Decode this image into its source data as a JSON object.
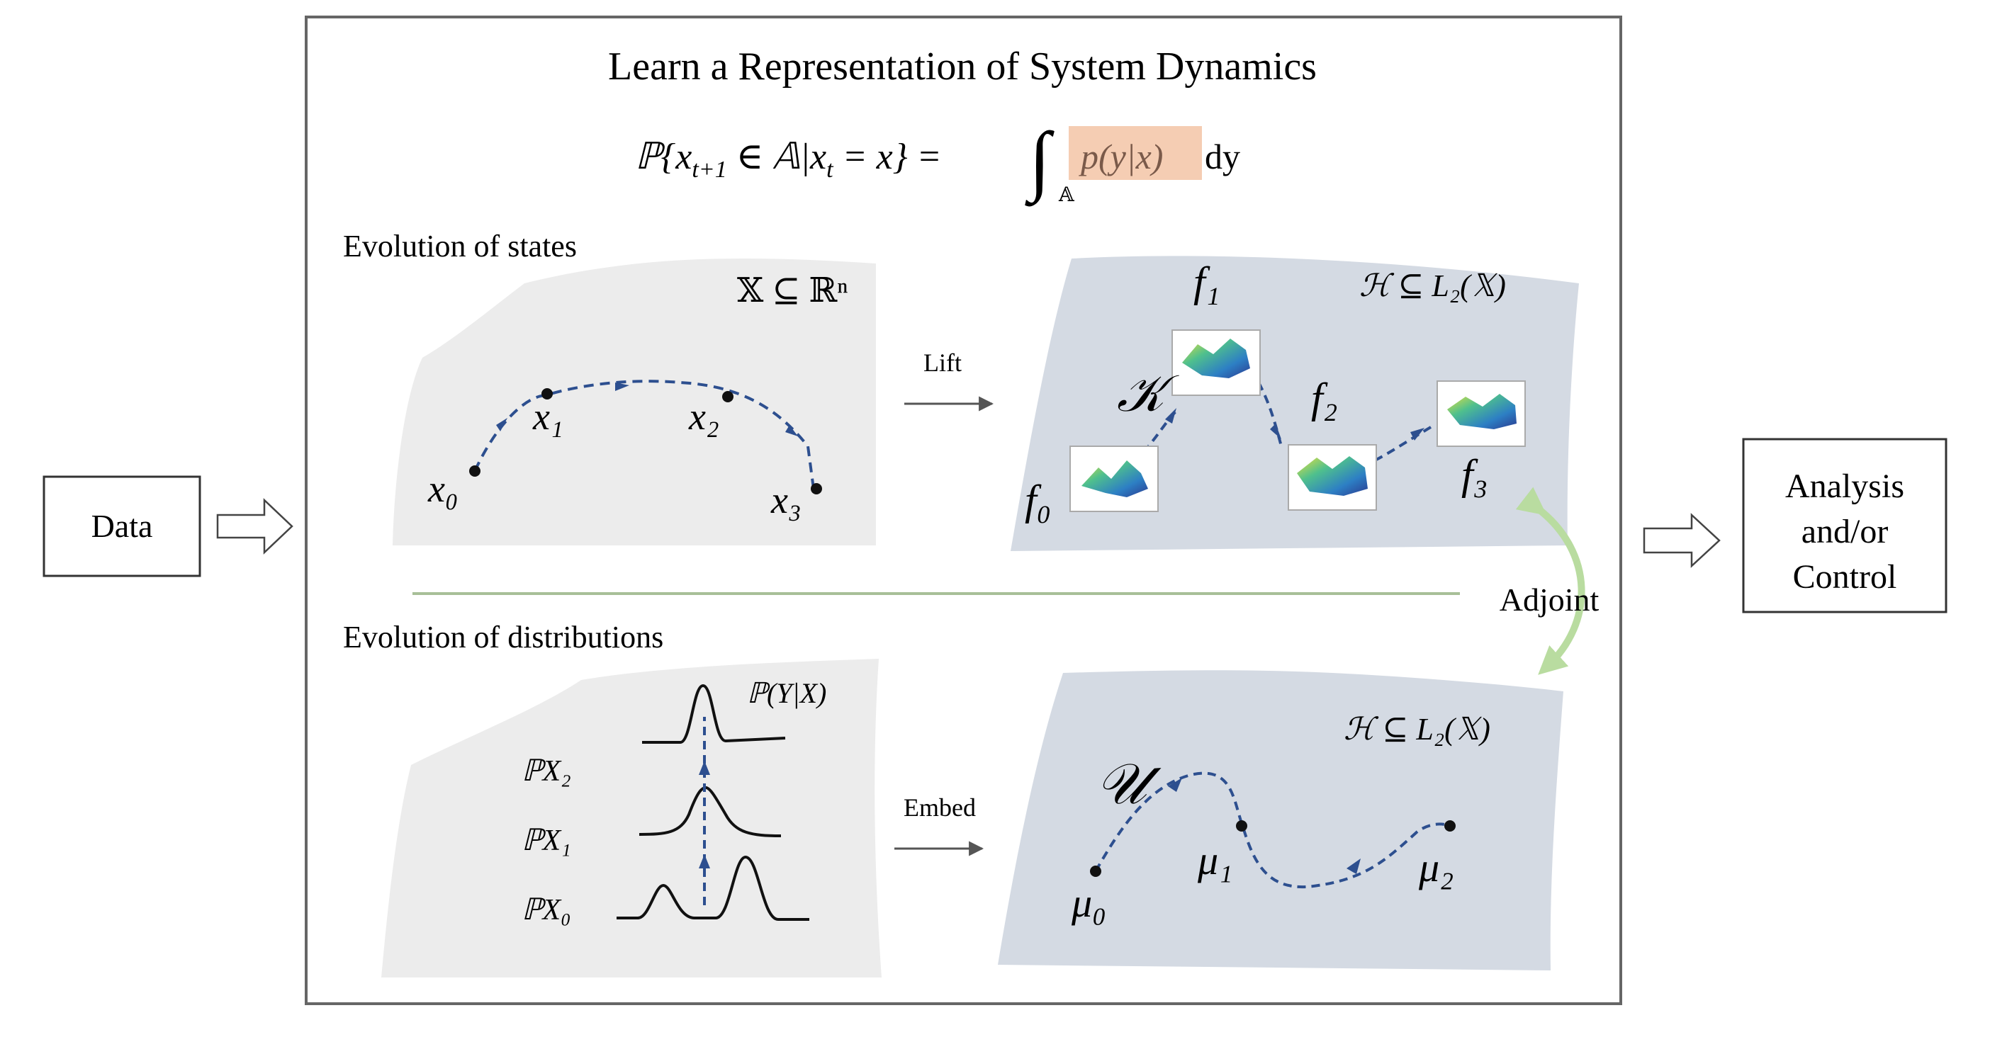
{
  "input_box": {
    "label": "Data"
  },
  "output_box": {
    "lines": [
      "Analysis",
      "and/or",
      "Control"
    ]
  },
  "main_panel": {
    "title": "Learn a Representation of System Dynamics",
    "equation": {
      "lhs": "ℙ{x",
      "sub_t1": "t+1",
      "mid": " ∈ 𝔸|x",
      "sub_t": "t",
      "rhs": " = x} =",
      "integral": "∫",
      "int_sub": "𝔸",
      "integrand": "p(y|x)",
      "differential": "dy",
      "highlight_color": "#f5cdb3"
    }
  },
  "states": {
    "section_label": "Evolution of states",
    "space_label": "𝕏 ⊆ ℝⁿ",
    "points": [
      "x₀",
      "x₁",
      "x₂",
      "x₃"
    ],
    "lift_label": "Lift",
    "feature_space_label": "ℋ ⊆ L₂(𝕏)",
    "functions": [
      "f₀",
      "f₁",
      "f₂",
      "f₃"
    ],
    "operator": "𝒦"
  },
  "distributions": {
    "section_label": "Evolution of distributions",
    "conditional_label": "ℙ(Y|X)",
    "marginals": [
      "ℙX₀",
      "ℙX₁",
      "ℙX₂"
    ],
    "embed_label": "Embed",
    "feature_space_label": "ℋ ⊆ L₂(𝕏)",
    "embeddings": [
      "μ₀",
      "μ₁",
      "μ₂"
    ],
    "operator": "𝒰"
  },
  "adjoint_label": "Adjoint",
  "colors": {
    "dashed_path": "#2d4f8f",
    "light_panel": "#ececec",
    "blue_panel": "#d4dae3",
    "adjoint_arrow": "#b9dca0",
    "divider": "#a8bf98"
  }
}
